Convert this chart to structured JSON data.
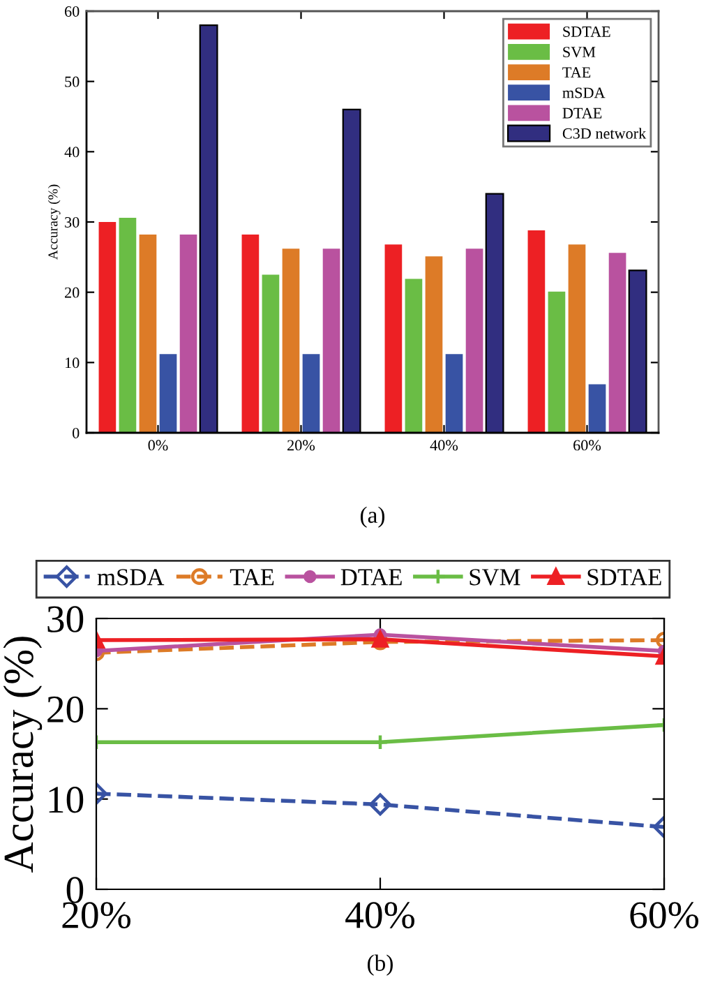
{
  "chart_data": [
    {
      "type": "bar",
      "ylabel": "Accuracy (%)",
      "categories": [
        "0%",
        "20%",
        "40%",
        "60%"
      ],
      "series": [
        {
          "name": "SDTAE",
          "color": "#ed2024",
          "values": [
            30,
            28.2,
            26.8,
            28.8
          ]
        },
        {
          "name": "SVM",
          "color": "#6abd45",
          "values": [
            30.6,
            22.5,
            21.9,
            20.1
          ]
        },
        {
          "name": "TAE",
          "color": "#dd7b27",
          "values": [
            28.2,
            26.2,
            25.1,
            26.8
          ]
        },
        {
          "name": "mSDA",
          "color": "#3853a4",
          "values": [
            11.2,
            11.2,
            11.2,
            6.9
          ]
        },
        {
          "name": "DTAE",
          "color": "#b9529f",
          "values": [
            28.2,
            26.2,
            26.2,
            25.6
          ]
        },
        {
          "name": "C3D network",
          "color": "#312e80",
          "values": [
            58,
            46,
            34,
            23.1
          ]
        }
      ],
      "ylim": [
        0,
        60
      ],
      "yticks": [
        0,
        10,
        20,
        30,
        40,
        50,
        60
      ],
      "legend": "top right",
      "grid": false,
      "annotations": [
        "(a)"
      ]
    },
    {
      "type": "line",
      "ylabel": "Accuracy (%)",
      "x": [
        20,
        40,
        60
      ],
      "series": [
        {
          "name": "mSDA",
          "color": "#3853a4",
          "values": [
            10.6,
            9.4,
            6.9
          ],
          "marker": "diamond",
          "line_style": "dashed"
        },
        {
          "name": "TAE",
          "color": "#dd7b27",
          "values": [
            26.2,
            27.4,
            27.6
          ],
          "marker": "circle",
          "line_style": "dashed"
        },
        {
          "name": "DTAE",
          "color": "#b9529f",
          "values": [
            26.4,
            28.2,
            26.4
          ],
          "marker": "circle",
          "line_style": "solid"
        },
        {
          "name": "SVM",
          "color": "#6abd45",
          "values": [
            16.3,
            16.3,
            18.2
          ],
          "marker": "cross",
          "line_style": "solid"
        },
        {
          "name": "SDTAE",
          "color": "#ed2024",
          "values": [
            27.6,
            27.7,
            25.8
          ],
          "marker": "triangle",
          "line_style": "solid"
        }
      ],
      "xlim": [
        20,
        60
      ],
      "xticks": [
        {
          "value": 20,
          "label": "20%"
        },
        {
          "value": 40,
          "label": "40%"
        },
        {
          "value": 60,
          "label": "60%"
        }
      ],
      "ylim": [
        0,
        30
      ],
      "yticks": [
        0,
        10,
        20,
        30
      ],
      "legend": "top",
      "grid": false,
      "annotations": [
        "(b)"
      ]
    }
  ]
}
